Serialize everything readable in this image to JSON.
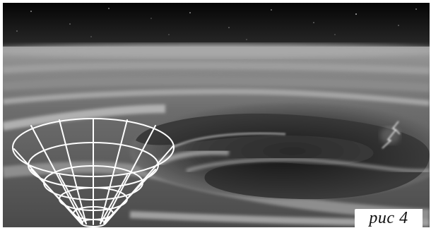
{
  "figure": {
    "caption": "рис 4"
  },
  "colors": {
    "sky_top": "#050505",
    "sky_bottom": "#2a2a2a",
    "cloud_light": "#bdbdbd",
    "cloud_mid": "#8c8c8c",
    "vortex_dark": "#1c1c1c",
    "grid_line": "#ffffff",
    "lightning": "#ffffff"
  },
  "icons": [
    "funnel-grid-icon",
    "lightning-icon"
  ]
}
